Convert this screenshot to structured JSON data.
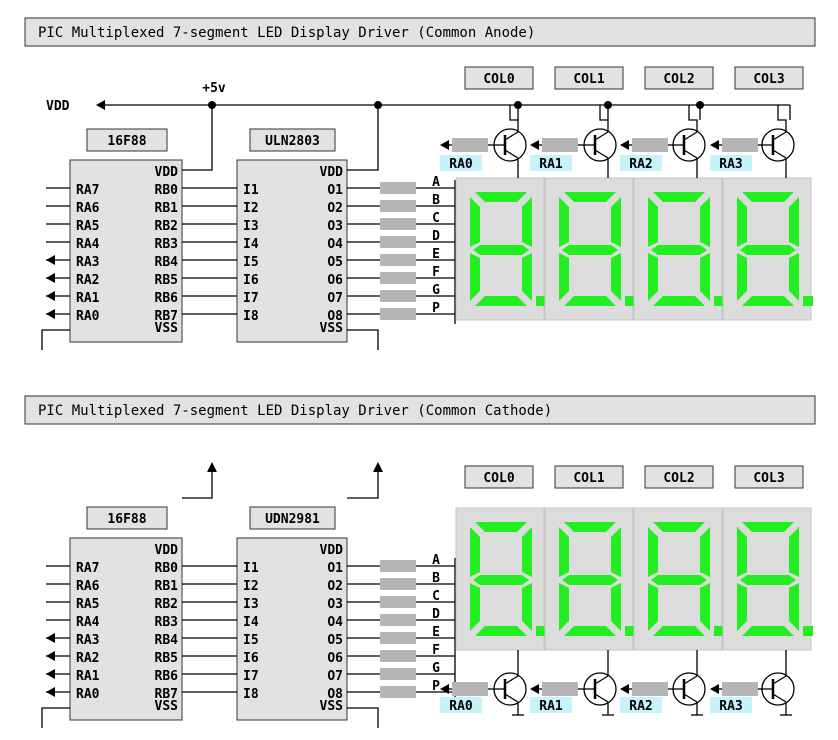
{
  "sections": [
    {
      "title": "PIC Multiplexed 7-segment LED Display Driver (Common Anode)",
      "vdd_label": "VDD",
      "supply_label": "+5v",
      "pic": {
        "name": "16F88",
        "vdd": "VDD",
        "vss": "VSS",
        "left_pins": [
          "RA7",
          "RA6",
          "RA5",
          "RA4",
          "RA3",
          "RA2",
          "RA1",
          "RA0"
        ],
        "right_pins": [
          "RB0",
          "RB1",
          "RB2",
          "RB3",
          "RB4",
          "RB5",
          "RB6",
          "RB7"
        ]
      },
      "driver": {
        "name": "ULN2803",
        "vdd": "VDD",
        "vss": "VSS",
        "inputs": [
          "I1",
          "I2",
          "I3",
          "I4",
          "I5",
          "I6",
          "I7",
          "I8"
        ],
        "outputs": [
          "O1",
          "O2",
          "O3",
          "O4",
          "O5",
          "O6",
          "O7",
          "O8"
        ]
      },
      "segments": [
        "A",
        "B",
        "C",
        "D",
        "E",
        "F",
        "G",
        "P"
      ],
      "columns": [
        "COL0",
        "COL1",
        "COL2",
        "COL3"
      ],
      "transistor_labels": [
        "RA0",
        "RA1",
        "RA2",
        "RA3"
      ]
    },
    {
      "title": "PIC Multiplexed 7-segment LED Display Driver (Common Cathode)",
      "pic": {
        "name": "16F88",
        "vdd": "VDD",
        "vss": "VSS",
        "left_pins": [
          "RA7",
          "RA6",
          "RA5",
          "RA4",
          "RA3",
          "RA2",
          "RA1",
          "RA0"
        ],
        "right_pins": [
          "RB0",
          "RB1",
          "RB2",
          "RB3",
          "RB4",
          "RB5",
          "RB6",
          "RB7"
        ]
      },
      "driver": {
        "name": "UDN2981",
        "vdd": "VDD",
        "vss": "VSS",
        "inputs": [
          "I1",
          "I2",
          "I3",
          "I4",
          "I5",
          "I6",
          "I7",
          "I8"
        ],
        "outputs": [
          "O1",
          "O2",
          "O3",
          "O4",
          "O5",
          "O6",
          "O7",
          "O8"
        ]
      },
      "segments": [
        "A",
        "B",
        "C",
        "D",
        "E",
        "F",
        "G",
        "P"
      ],
      "columns": [
        "COL0",
        "COL1",
        "COL2",
        "COL3"
      ],
      "transistor_labels": [
        "RA0",
        "RA1",
        "RA2",
        "RA3"
      ]
    }
  ],
  "colors": {
    "segment_lit": "#22ee22",
    "panel": "#e2e2e2",
    "label_highlight": "#c6f2fb"
  }
}
